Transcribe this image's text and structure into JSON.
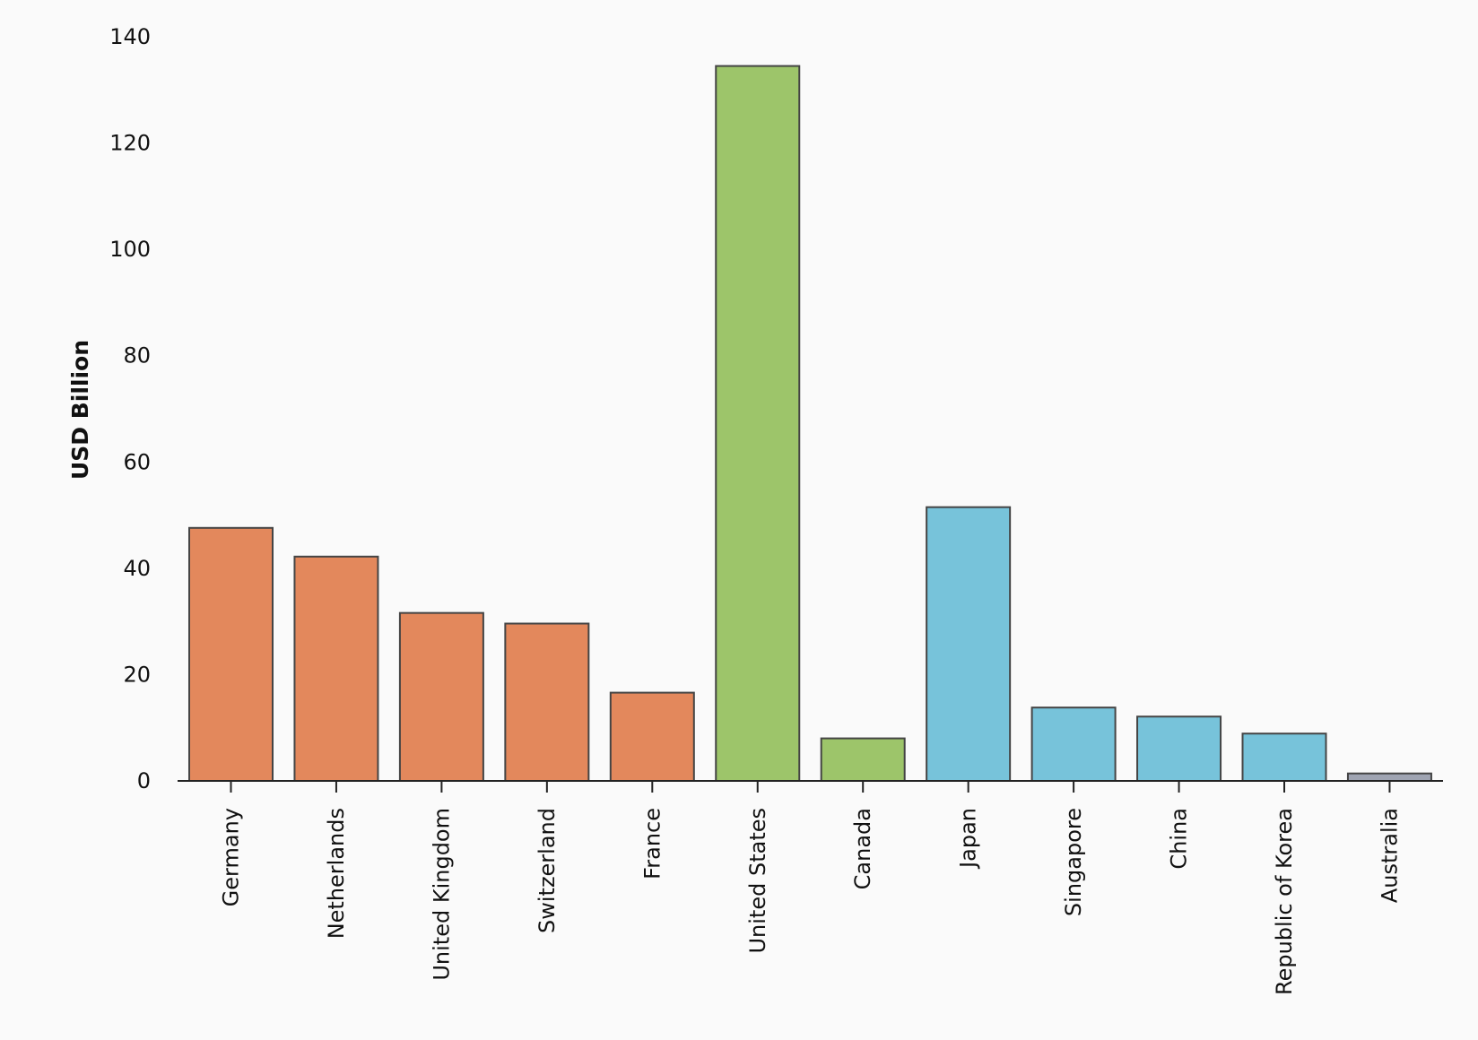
{
  "chart_data": {
    "type": "bar",
    "categories": [
      "Germany",
      "Netherlands",
      "United Kingdom",
      "Switzerland",
      "France",
      "United States",
      "Canada",
      "Japan",
      "Singapore",
      "China",
      "Republic of Korea",
      "Australia"
    ],
    "values": [
      47.6,
      42.2,
      31.6,
      29.6,
      16.6,
      134.5,
      8.0,
      51.5,
      13.8,
      12.1,
      8.9,
      1.4
    ],
    "colors": [
      "#e3885c",
      "#e3885c",
      "#e3885c",
      "#e3885c",
      "#e3885c",
      "#9dc56a",
      "#9dc56a",
      "#77c3da",
      "#77c3da",
      "#77c3da",
      "#77c3da",
      "#9fa4b2"
    ],
    "ylabel": "USD Billion",
    "xlabel": "",
    "ylim": [
      0,
      140
    ],
    "yticks": [
      0,
      20,
      40,
      60,
      80,
      100,
      120,
      140
    ],
    "grid": false,
    "legend": "none"
  }
}
